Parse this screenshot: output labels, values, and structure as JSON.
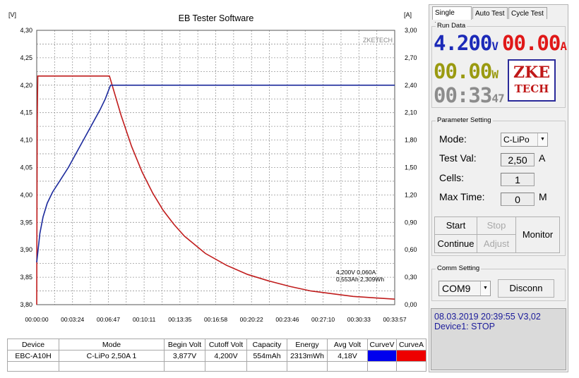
{
  "chart_data": {
    "type": "line",
    "title": "EB Tester Software",
    "watermark": "ZKETECH",
    "ylabel_left": "[V]",
    "ylabel_right": "[A]",
    "left_axis": {
      "min": 3.8,
      "max": 4.3,
      "ticks": [
        "4,30",
        "4,25",
        "4,20",
        "4,15",
        "4,10",
        "4,05",
        "4,00",
        "3,95",
        "3,90",
        "3,85",
        "3,80"
      ]
    },
    "right_axis": {
      "min": 0.0,
      "max": 3.0,
      "ticks": [
        "3,00",
        "2,70",
        "2,40",
        "2,10",
        "1,80",
        "1,50",
        "1,20",
        "0,90",
        "0,60",
        "0,30",
        "0,00"
      ]
    },
    "x_ticks": [
      "00:00:00",
      "00:03:24",
      "00:06:47",
      "00:10:11",
      "00:13:35",
      "00:16:58",
      "00:20:22",
      "00:23:46",
      "00:27:10",
      "00:30:33",
      "00:33:57"
    ],
    "x_range_min": [
      0,
      33.95
    ],
    "series": [
      {
        "name": "Voltage",
        "axis": "left",
        "color": "#1c2a9c",
        "x": [
          0,
          0.3,
          0.6,
          1,
          1.5,
          2,
          3,
          4,
          5,
          6,
          6.5,
          7,
          10,
          15,
          20,
          25,
          30,
          33.95
        ],
        "y": [
          3.877,
          3.93,
          3.96,
          3.985,
          4.005,
          4.02,
          4.05,
          4.085,
          4.12,
          4.155,
          4.175,
          4.2,
          4.2,
          4.2,
          4.2,
          4.2,
          4.2,
          4.2
        ]
      },
      {
        "name": "Current",
        "axis": "right",
        "color": "#c01c1c",
        "x": [
          0,
          0.05,
          0.1,
          3,
          6.9,
          8,
          9,
          10,
          11,
          12,
          13,
          14,
          16,
          18,
          20,
          22,
          24,
          26,
          28,
          30,
          32,
          33.95
        ],
        "y": [
          0.0,
          2.0,
          2.5,
          2.5,
          2.5,
          2.07,
          1.73,
          1.45,
          1.22,
          1.03,
          0.88,
          0.75,
          0.56,
          0.43,
          0.33,
          0.26,
          0.2,
          0.15,
          0.12,
          0.09,
          0.075,
          0.06
        ]
      }
    ],
    "annotation": {
      "line1": "4,200V  0,060A",
      "line2": "0,553Ah 2,309Wh"
    }
  },
  "table": {
    "headers": [
      "Device",
      "Mode",
      "Begin Volt",
      "Cutoff Volt",
      "Capacity",
      "Energy",
      "Avg Volt",
      "CurveV",
      "CurveA"
    ],
    "row": [
      "EBC-A10H",
      "C-LiPo  2,50A  1",
      "3,877V",
      "4,200V",
      "554mAh",
      "2313mWh",
      "4,18V",
      "",
      ""
    ],
    "curve_colors": [
      "#0000ee",
      "#ee0000"
    ]
  },
  "tabs": [
    "Single Test",
    "Auto Test",
    "Cycle Test"
  ],
  "run_data": {
    "title": "Run Data",
    "voltage": "4.200",
    "voltage_unit": "V",
    "current": "00.00",
    "current_unit": "A",
    "power": "00.00",
    "power_unit": "W",
    "time": "00:33",
    "time_sec": "47",
    "logo_line1": "ZKE",
    "logo_line2": "TECH",
    "colors": {
      "voltage": "#1c2ab8",
      "current": "#e01818",
      "power": "#9a9a10",
      "time": "#8c8c8c"
    }
  },
  "params": {
    "title": "Parameter Setting",
    "mode_label": "Mode:",
    "mode_value": "C-LiPo",
    "test_val_label": "Test Val:",
    "test_val": "2,50",
    "test_val_unit": "A",
    "cells_label": "Cells:",
    "cells": "1",
    "max_time_label": "Max Time:",
    "max_time": "0",
    "max_time_unit": "M"
  },
  "buttons": {
    "start": "Start",
    "stop": "Stop",
    "continue": "Continue",
    "adjust": "Adjust",
    "monitor": "Monitor"
  },
  "comm": {
    "title": "Comm Setting",
    "port": "COM9",
    "disconnect": "Disconn"
  },
  "status": {
    "line1": "08.03.2019 20:39:55  V3,02",
    "line2": "Device1: STOP"
  }
}
